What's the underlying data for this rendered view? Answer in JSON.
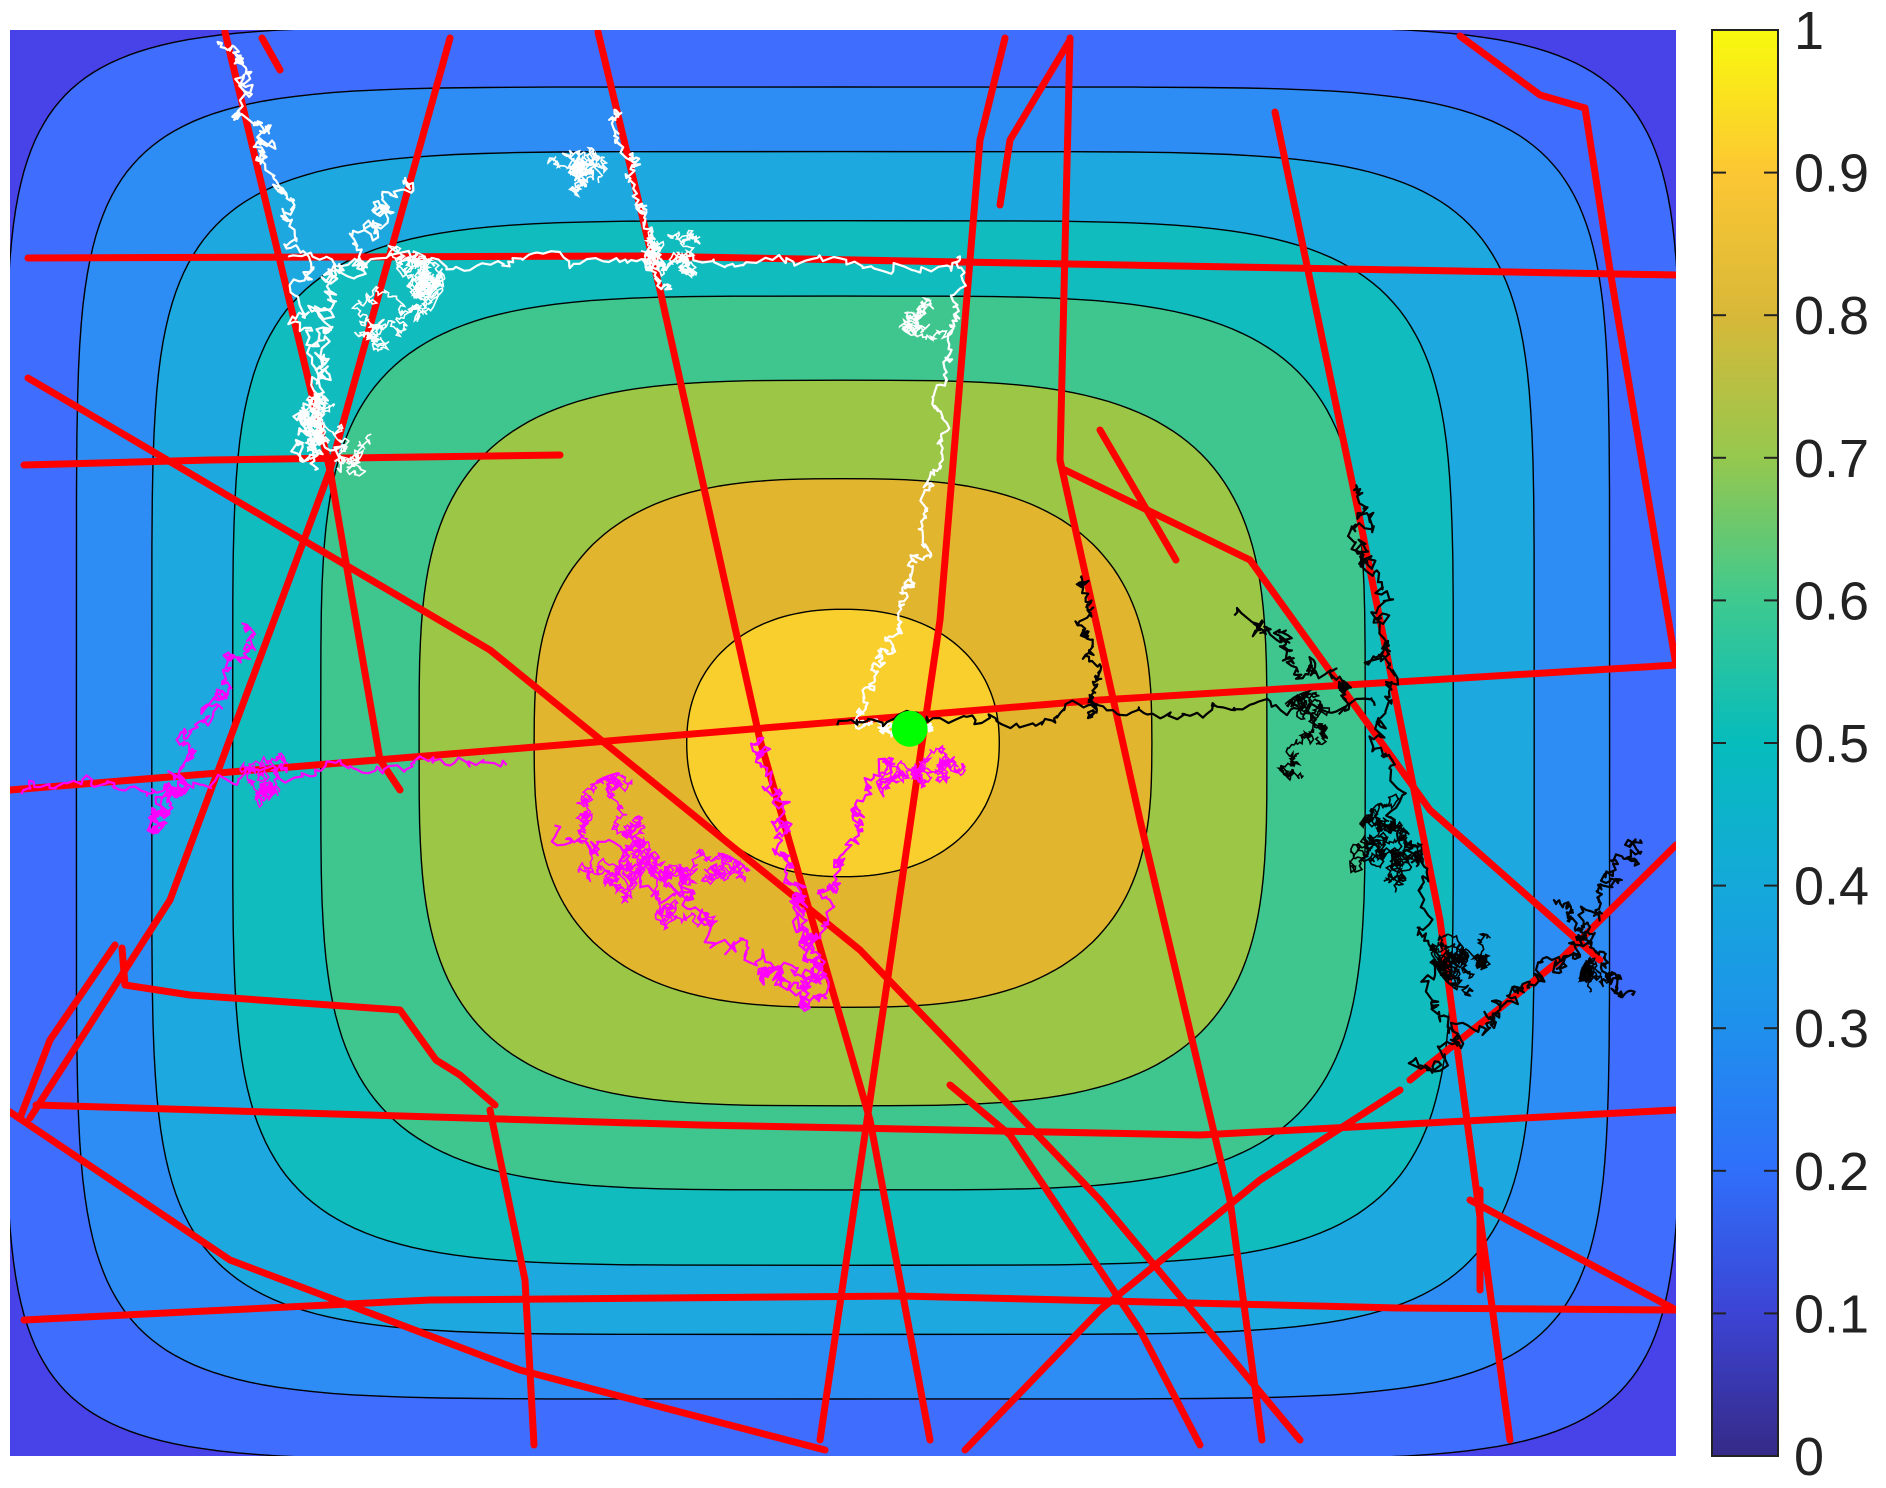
{
  "chart_data": {
    "type": "heatmap",
    "subtype": "filled-contour",
    "title": "",
    "xlabel": "",
    "ylabel": "",
    "x_axis_visible": false,
    "y_axis_visible": false,
    "grid": false,
    "field": {
      "description_levels": [
        0.1,
        0.2,
        0.3,
        0.4,
        0.5,
        0.6,
        0.7,
        0.8,
        0.9
      ],
      "peak_value": 0.95,
      "peak_location_fraction": [
        0.5,
        0.5
      ],
      "colors": [
        "#3e26a8",
        "#4743e8",
        "#3f6dfe",
        "#2d8df4",
        "#1da9e0",
        "#11bcbf",
        "#3fc68e",
        "#9cc646",
        "#e2b52f",
        "#f8cf2d"
      ]
    },
    "colorbar": {
      "range": [
        0,
        1
      ],
      "ticks": [
        "0",
        "0.1",
        "0.2",
        "0.3",
        "0.4",
        "0.5",
        "0.6",
        "0.7",
        "0.8",
        "0.9",
        "1"
      ],
      "colormap": "parula",
      "position": "right"
    },
    "overlays": {
      "red_lines": {
        "color": "#ff0000",
        "count": 26
      },
      "random_walks": [
        {
          "color": "#ffffff"
        },
        {
          "color": "#ff00ff"
        },
        {
          "color": "#000000"
        }
      ],
      "start_point": {
        "color": "#00ff00",
        "x": 0.54,
        "y": 0.49
      }
    }
  }
}
